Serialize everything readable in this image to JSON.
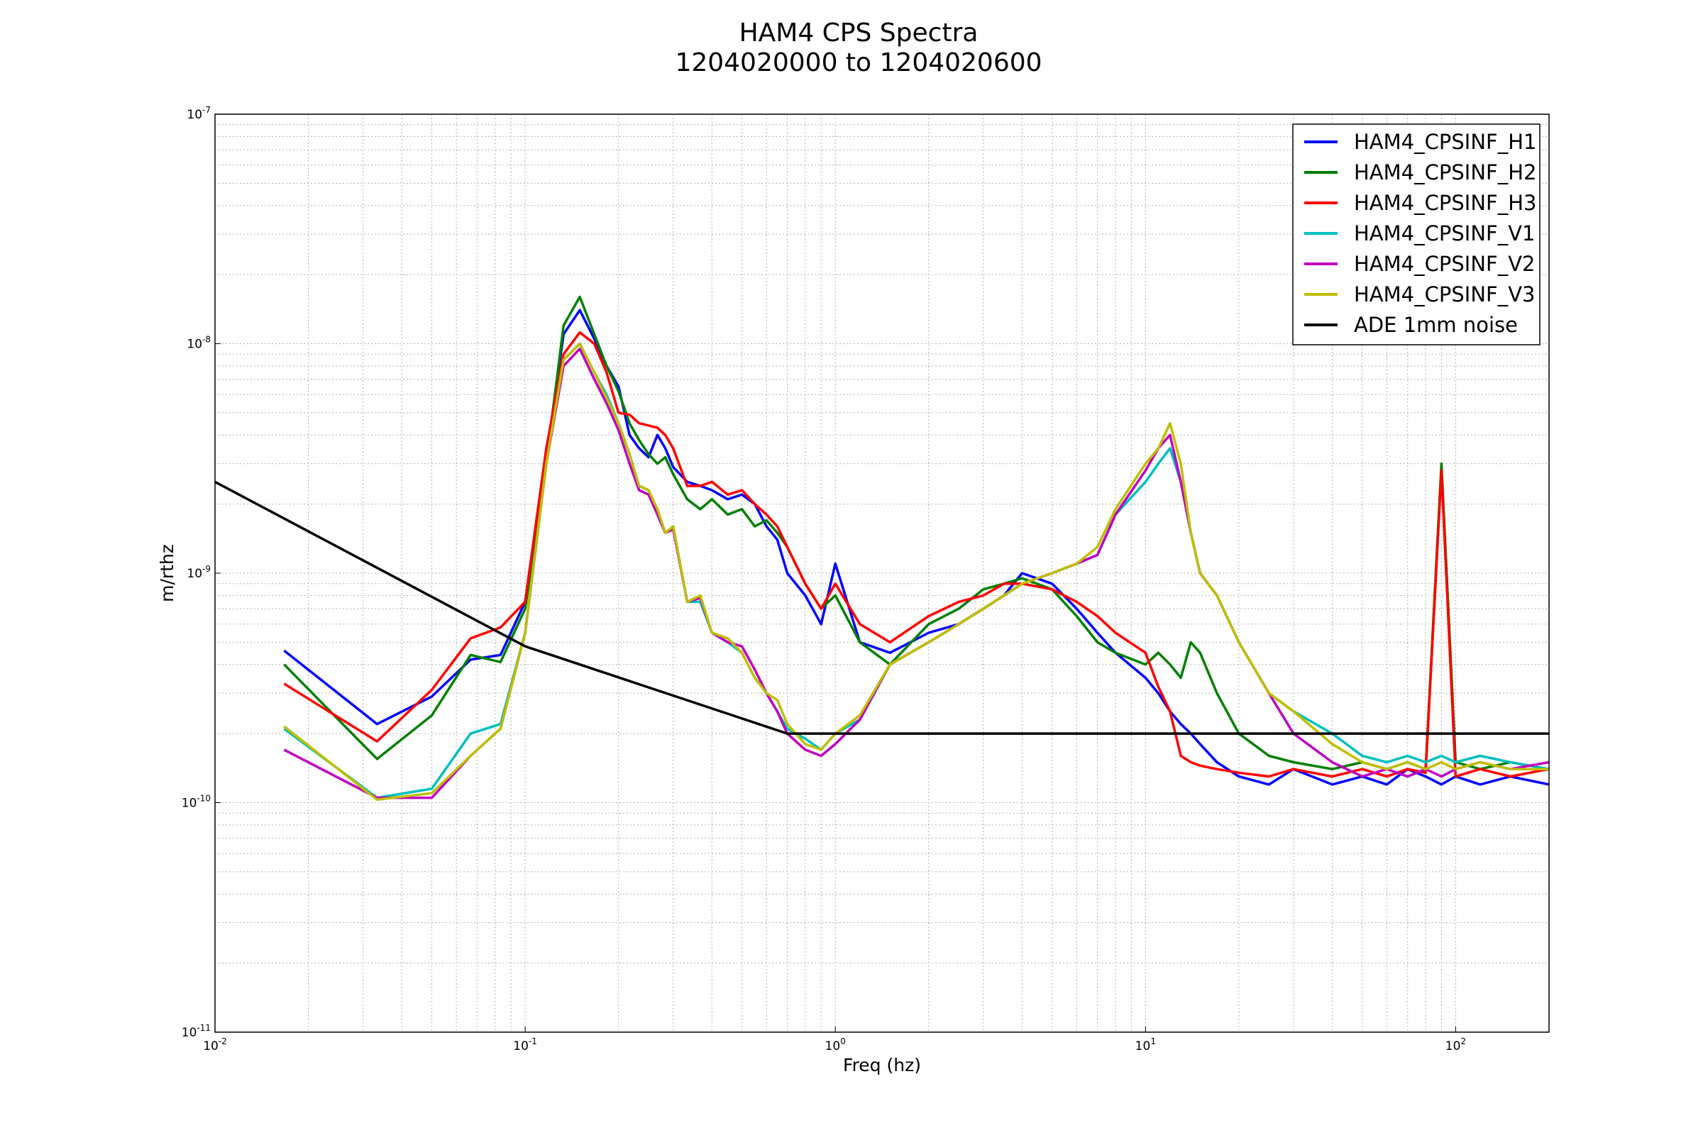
{
  "chart_data": {
    "type": "line",
    "title": [
      "HAM4 CPS Spectra",
      "1204020000 to 1204020600"
    ],
    "xlabel": "Freq (hz)",
    "ylabel": "m/rthz",
    "xscale": "log",
    "yscale": "log",
    "xlim": [
      0.01,
      200
    ],
    "ylim": [
      1e-11,
      1e-07
    ],
    "grid": true,
    "legend_position": "top-right",
    "x_ticks": [
      {
        "value": 0.01,
        "base": "10",
        "exp": "-2"
      },
      {
        "value": 0.1,
        "base": "10",
        "exp": "-1"
      },
      {
        "value": 1,
        "base": "10",
        "exp": "0"
      },
      {
        "value": 10,
        "base": "10",
        "exp": "1"
      },
      {
        "value": 100,
        "base": "10",
        "exp": "2"
      }
    ],
    "y_ticks": [
      {
        "value": 1e-11,
        "base": "10",
        "exp": "-11"
      },
      {
        "value": 1e-10,
        "base": "10",
        "exp": "-10"
      },
      {
        "value": 1e-09,
        "base": "10",
        "exp": "-9"
      },
      {
        "value": 1e-08,
        "base": "10",
        "exp": "-8"
      },
      {
        "value": 1e-07,
        "base": "10",
        "exp": "-7"
      }
    ],
    "series": [
      {
        "name": "HAM4_CPSINF_H1",
        "color": "#0000ff",
        "x": [
          0.0167,
          0.0333,
          0.05,
          0.0667,
          0.0833,
          0.1,
          0.117,
          0.133,
          0.15,
          0.167,
          0.183,
          0.2,
          0.217,
          0.233,
          0.25,
          0.267,
          0.283,
          0.3,
          0.333,
          0.367,
          0.4,
          0.45,
          0.5,
          0.55,
          0.6,
          0.65,
          0.7,
          0.8,
          0.9,
          1.0,
          1.2,
          1.5,
          2,
          2.5,
          3,
          3.5,
          4,
          5,
          6,
          7,
          8,
          10,
          11,
          12,
          13,
          14,
          15,
          17,
          20,
          25,
          30,
          40,
          50,
          60,
          70,
          80,
          90,
          100,
          120,
          150,
          200
        ],
        "y": [
          4.6e-10,
          2.2e-10,
          2.9e-10,
          4.2e-10,
          4.4e-10,
          7.5e-10,
          3.2e-09,
          1.1e-08,
          1.4e-08,
          1.05e-08,
          8e-09,
          6.5e-09,
          4e-09,
          3.5e-09,
          3.2e-09,
          4e-09,
          3.5e-09,
          2.9e-09,
          2.5e-09,
          2.4e-09,
          2.3e-09,
          2.1e-09,
          2.2e-09,
          2e-09,
          1.6e-09,
          1.4e-09,
          1e-09,
          8e-10,
          6e-10,
          1.1e-09,
          5e-10,
          4.5e-10,
          5.5e-10,
          6e-10,
          7e-10,
          8e-10,
          1e-09,
          9e-10,
          7e-10,
          5.5e-10,
          4.5e-10,
          3.5e-10,
          3e-10,
          2.5e-10,
          2.2e-10,
          2e-10,
          1.8e-10,
          1.5e-10,
          1.3e-10,
          1.2e-10,
          1.4e-10,
          1.2e-10,
          1.3e-10,
          1.2e-10,
          1.4e-10,
          1.3e-10,
          1.2e-10,
          1.3e-10,
          1.2e-10,
          1.3e-10,
          1.2e-10
        ]
      },
      {
        "name": "HAM4_CPSINF_H2",
        "color": "#008000",
        "x": [
          0.0167,
          0.0333,
          0.05,
          0.0667,
          0.0833,
          0.1,
          0.117,
          0.133,
          0.15,
          0.167,
          0.183,
          0.2,
          0.217,
          0.233,
          0.25,
          0.267,
          0.283,
          0.3,
          0.333,
          0.367,
          0.4,
          0.45,
          0.5,
          0.55,
          0.6,
          0.65,
          0.7,
          0.8,
          0.9,
          1.0,
          1.2,
          1.5,
          2,
          2.5,
          3,
          3.5,
          4,
          5,
          6,
          7,
          8,
          10,
          11,
          12,
          13,
          14,
          15,
          17,
          20,
          25,
          30,
          40,
          50,
          60,
          70,
          80,
          90,
          100,
          120,
          150,
          200
        ],
        "y": [
          4e-10,
          1.55e-10,
          2.4e-10,
          4.4e-10,
          4.1e-10,
          7e-10,
          3e-09,
          1.2e-08,
          1.6e-08,
          1.1e-08,
          8e-09,
          6.2e-09,
          4.5e-09,
          3.8e-09,
          3.3e-09,
          3e-09,
          3.2e-09,
          2.7e-09,
          2.1e-09,
          1.9e-09,
          2.1e-09,
          1.8e-09,
          1.9e-09,
          1.6e-09,
          1.7e-09,
          1.5e-09,
          1.3e-09,
          9e-10,
          7e-10,
          8e-10,
          5e-10,
          4e-10,
          6e-10,
          7e-10,
          8.5e-10,
          9e-10,
          9.5e-10,
          8.5e-10,
          6.5e-10,
          5e-10,
          4.5e-10,
          4e-10,
          4.5e-10,
          4e-10,
          3.5e-10,
          5e-10,
          4.5e-10,
          3e-10,
          2e-10,
          1.6e-10,
          1.5e-10,
          1.4e-10,
          1.5e-10,
          1.4e-10,
          1.5e-10,
          1.4e-10,
          3e-09,
          1.5e-10,
          1.4e-10,
          1.5e-10,
          1.4e-10
        ]
      },
      {
        "name": "HAM4_CPSINF_H3",
        "color": "#ff0000",
        "x": [
          0.0167,
          0.0333,
          0.05,
          0.0667,
          0.0833,
          0.1,
          0.117,
          0.133,
          0.15,
          0.167,
          0.183,
          0.2,
          0.217,
          0.233,
          0.25,
          0.267,
          0.283,
          0.3,
          0.333,
          0.367,
          0.4,
          0.45,
          0.5,
          0.55,
          0.6,
          0.65,
          0.7,
          0.8,
          0.9,
          1.0,
          1.2,
          1.5,
          2,
          2.5,
          3,
          3.5,
          4,
          5,
          6,
          7,
          8,
          10,
          11,
          12,
          13,
          14,
          15,
          17,
          20,
          25,
          30,
          40,
          50,
          60,
          70,
          80,
          90,
          100,
          120,
          150,
          200
        ],
        "y": [
          3.3e-10,
          1.85e-10,
          3.1e-10,
          5.2e-10,
          5.8e-10,
          7.5e-10,
          3.5e-09,
          9e-09,
          1.12e-08,
          1e-08,
          7.5e-09,
          5e-09,
          4.9e-09,
          4.5e-09,
          4.4e-09,
          4.3e-09,
          4e-09,
          3.5e-09,
          2.4e-09,
          2.4e-09,
          2.5e-09,
          2.2e-09,
          2.3e-09,
          2e-09,
          1.8e-09,
          1.6e-09,
          1.3e-09,
          9e-10,
          7e-10,
          9e-10,
          6e-10,
          5e-10,
          6.5e-10,
          7.5e-10,
          8e-10,
          9e-10,
          9e-10,
          8.5e-10,
          7.5e-10,
          6.5e-10,
          5.5e-10,
          4.5e-10,
          3.2e-10,
          2.5e-10,
          1.6e-10,
          1.5e-10,
          1.45e-10,
          1.4e-10,
          1.35e-10,
          1.3e-10,
          1.4e-10,
          1.3e-10,
          1.4e-10,
          1.3e-10,
          1.4e-10,
          1.35e-10,
          2.8e-09,
          1.3e-10,
          1.4e-10,
          1.3e-10,
          1.4e-10
        ]
      },
      {
        "name": "HAM4_CPSINF_V1",
        "color": "#00bfbf",
        "x": [
          0.0167,
          0.0333,
          0.05,
          0.0667,
          0.0833,
          0.1,
          0.117,
          0.133,
          0.15,
          0.167,
          0.183,
          0.2,
          0.217,
          0.233,
          0.25,
          0.267,
          0.283,
          0.3,
          0.333,
          0.367,
          0.4,
          0.45,
          0.5,
          0.55,
          0.6,
          0.65,
          0.7,
          0.8,
          0.9,
          1.0,
          1.2,
          1.5,
          2,
          2.5,
          3,
          3.5,
          4,
          5,
          6,
          7,
          8,
          10,
          11,
          12,
          13,
          14,
          15,
          17,
          20,
          25,
          30,
          40,
          50,
          60,
          70,
          80,
          90,
          100,
          120,
          150,
          200
        ],
        "y": [
          2.1e-10,
          1.05e-10,
          1.15e-10,
          2e-10,
          2.2e-10,
          5.5e-10,
          3e-09,
          8.5e-09,
          1e-08,
          7.5e-09,
          6e-09,
          4.5e-09,
          3.3e-09,
          2.4e-09,
          2.3e-09,
          1.8e-09,
          1.5e-09,
          1.6e-09,
          7.5e-10,
          7.5e-10,
          5.5e-10,
          5e-10,
          4.5e-10,
          3.5e-10,
          3e-10,
          2.5e-10,
          2.1e-10,
          1.9e-10,
          1.7e-10,
          2e-10,
          2.3e-10,
          4e-10,
          5e-10,
          6e-10,
          7e-10,
          8e-10,
          9e-10,
          1e-09,
          1.1e-09,
          1.2e-09,
          1.8e-09,
          2.5e-09,
          3e-09,
          3.5e-09,
          2.5e-09,
          1.5e-09,
          1e-09,
          8e-10,
          5e-10,
          3e-10,
          2.5e-10,
          2e-10,
          1.6e-10,
          1.5e-10,
          1.6e-10,
          1.5e-10,
          1.6e-10,
          1.5e-10,
          1.6e-10,
          1.5e-10,
          1.4e-10
        ]
      },
      {
        "name": "HAM4_CPSINF_V2",
        "color": "#bf00bf",
        "x": [
          0.0167,
          0.0333,
          0.05,
          0.0667,
          0.0833,
          0.1,
          0.117,
          0.133,
          0.15,
          0.167,
          0.183,
          0.2,
          0.217,
          0.233,
          0.25,
          0.267,
          0.283,
          0.3,
          0.333,
          0.367,
          0.4,
          0.45,
          0.5,
          0.55,
          0.6,
          0.65,
          0.7,
          0.8,
          0.9,
          1.0,
          1.2,
          1.5,
          2,
          2.5,
          3,
          3.5,
          4,
          5,
          6,
          7,
          8,
          10,
          11,
          12,
          13,
          14,
          15,
          17,
          20,
          25,
          30,
          40,
          50,
          60,
          70,
          80,
          90,
          100,
          120,
          150,
          200
        ],
        "y": [
          1.7e-10,
          1.05e-10,
          1.05e-10,
          1.6e-10,
          2.1e-10,
          5.5e-10,
          3e-09,
          8e-09,
          9.5e-09,
          7e-09,
          5.5e-09,
          4.2e-09,
          3e-09,
          2.3e-09,
          2.2e-09,
          1.8e-09,
          1.5e-09,
          1.55e-09,
          7.5e-10,
          7.8e-10,
          5.5e-10,
          5e-10,
          4.8e-10,
          3.8e-10,
          3e-10,
          2.5e-10,
          2e-10,
          1.7e-10,
          1.6e-10,
          1.8e-10,
          2.3e-10,
          4e-10,
          5e-10,
          6e-10,
          7e-10,
          8e-10,
          9e-10,
          1e-09,
          1.1e-09,
          1.2e-09,
          1.8e-09,
          2.8e-09,
          3.5e-09,
          4e-09,
          2.5e-09,
          1.5e-09,
          1e-09,
          8e-10,
          5e-10,
          3e-10,
          2e-10,
          1.5e-10,
          1.3e-10,
          1.4e-10,
          1.3e-10,
          1.4e-10,
          1.3e-10,
          1.4e-10,
          1.5e-10,
          1.4e-10,
          1.5e-10
        ]
      },
      {
        "name": "HAM4_CPSINF_V3",
        "color": "#bfbf00",
        "x": [
          0.0167,
          0.0333,
          0.05,
          0.0667,
          0.0833,
          0.1,
          0.117,
          0.133,
          0.15,
          0.167,
          0.183,
          0.2,
          0.217,
          0.233,
          0.25,
          0.267,
          0.283,
          0.3,
          0.333,
          0.367,
          0.4,
          0.45,
          0.5,
          0.55,
          0.6,
          0.65,
          0.7,
          0.8,
          0.9,
          1.0,
          1.2,
          1.5,
          2,
          2.5,
          3,
          3.5,
          4,
          5,
          6,
          7,
          8,
          10,
          11,
          12,
          13,
          14,
          15,
          17,
          20,
          25,
          30,
          40,
          50,
          60,
          70,
          80,
          90,
          100,
          120,
          150,
          200
        ],
        "y": [
          2.15e-10,
          1.03e-10,
          1.1e-10,
          1.6e-10,
          2.1e-10,
          5.5e-10,
          3e-09,
          8.5e-09,
          1e-08,
          7.5e-09,
          5.8e-09,
          4.5e-09,
          3.3e-09,
          2.4e-09,
          2.3e-09,
          1.9e-09,
          1.5e-09,
          1.6e-09,
          7.5e-10,
          8e-10,
          5.5e-10,
          5.2e-10,
          4.5e-10,
          3.5e-10,
          3e-10,
          2.8e-10,
          2.2e-10,
          1.8e-10,
          1.7e-10,
          2e-10,
          2.4e-10,
          4e-10,
          5e-10,
          6e-10,
          7e-10,
          8e-10,
          9e-10,
          1e-09,
          1.1e-09,
          1.3e-09,
          1.9e-09,
          3e-09,
          3.5e-09,
          4.5e-09,
          3e-09,
          1.5e-09,
          1e-09,
          8e-10,
          5e-10,
          3e-10,
          2.5e-10,
          1.8e-10,
          1.5e-10,
          1.4e-10,
          1.5e-10,
          1.4e-10,
          1.5e-10,
          1.4e-10,
          1.5e-10,
          1.4e-10,
          1.4e-10
        ]
      },
      {
        "name": "ADE 1mm noise",
        "color": "#000000",
        "x": [
          0.01,
          0.1,
          0.7,
          200
        ],
        "y": [
          2.5e-09,
          4.8e-10,
          2e-10,
          2e-10
        ]
      }
    ]
  }
}
